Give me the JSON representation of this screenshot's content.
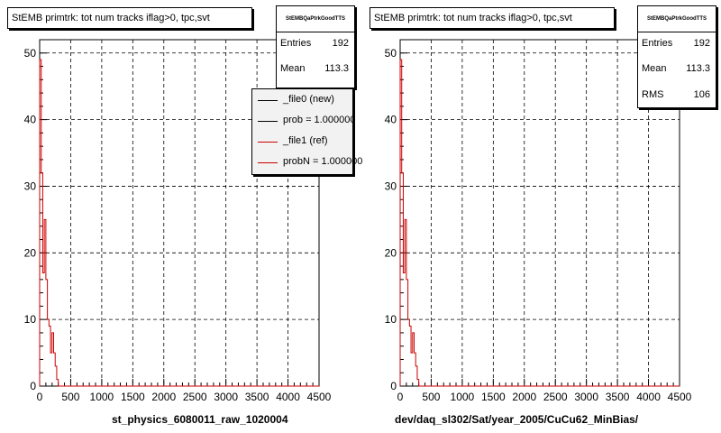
{
  "chart_data": [
    {
      "type": "histogram",
      "title": "StEMB primtrk: tot num tracks iflag>0, tpc,svt",
      "xlabel": "st_physics_6080011_raw_1020004",
      "xlim": [
        0,
        4500
      ],
      "ylim": [
        0,
        52
      ],
      "x_ticks": [
        "0",
        "500",
        "1000",
        "1500",
        "2000",
        "2500",
        "3000",
        "3500",
        "4000",
        "4500"
      ],
      "y_ticks": [
        "0",
        "10",
        "20",
        "30",
        "40",
        "50"
      ],
      "grid": true,
      "bin_width": 25,
      "series": [
        {
          "color": "#cc0000",
          "values": [
            49,
            32,
            17,
            25,
            16,
            10,
            9,
            5,
            8,
            5,
            3,
            1,
            0
          ]
        }
      ],
      "stats": {
        "name": "StEMBQaPtrkGoodTTS",
        "rows": [
          {
            "label": "Entries",
            "value": "192"
          },
          {
            "label": "Mean",
            "value": "113.3"
          }
        ]
      },
      "legend": [
        {
          "label": "_file0 (new)",
          "color": "#000000"
        },
        {
          "label": "prob = 1.000000",
          "color": "#000000"
        },
        {
          "label": "_file1 (ref)",
          "color": "#cc0000"
        },
        {
          "label": "probN = 1.000000",
          "color": "#cc0000"
        }
      ]
    },
    {
      "type": "histogram",
      "title": "StEMB primtrk: tot num tracks iflag>0, tpc,svt",
      "xlabel": "dev/daq_sl302/Sat/year_2005/CuCu62_MinBias/",
      "xlim": [
        0,
        4500
      ],
      "ylim": [
        0,
        52
      ],
      "x_ticks": [
        "0",
        "500",
        "1000",
        "1500",
        "2000",
        "2500",
        "3000",
        "3500",
        "4000",
        "4500"
      ],
      "y_ticks": [
        "0",
        "10",
        "20",
        "30",
        "40",
        "50"
      ],
      "grid": true,
      "bin_width": 25,
      "series": [
        {
          "color": "#cc0000",
          "values": [
            49,
            32,
            17,
            25,
            16,
            10,
            9,
            5,
            8,
            5,
            3,
            1,
            0
          ]
        }
      ],
      "stats": {
        "name": "StEMBQaPtrkGoodTTS",
        "rows": [
          {
            "label": "Entries",
            "value": "192"
          },
          {
            "label": "Mean",
            "value": "113.3"
          },
          {
            "label": "RMS",
            "value": "106"
          }
        ]
      }
    }
  ]
}
